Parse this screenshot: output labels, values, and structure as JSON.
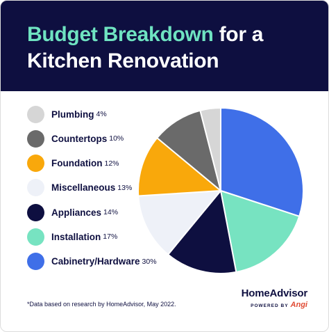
{
  "title": {
    "accent": "Budget Breakdown",
    "rest": "for a Kitchen Renovation"
  },
  "chart_data": {
    "type": "pie",
    "start": "12 o'clock, clockwise",
    "slices": [
      {
        "label": "Cabinetry/Hardware",
        "value": 30,
        "pct_label": "30%",
        "color": "#3f6fe8"
      },
      {
        "label": "Installation",
        "value": 17,
        "pct_label": "17%",
        "color": "#77e3c1"
      },
      {
        "label": "Appliances",
        "value": 14,
        "pct_label": "14%",
        "color": "#0e0f40"
      },
      {
        "label": "Miscellaneous",
        "value": 13,
        "pct_label": "13%",
        "color": "#eef1f8"
      },
      {
        "label": "Foundation",
        "value": 12,
        "pct_label": "12%",
        "color": "#f9a80b"
      },
      {
        "label": "Countertops",
        "value": 10,
        "pct_label": "10%",
        "color": "#6a6a6a"
      },
      {
        "label": "Plumbing",
        "value": 4,
        "pct_label": "4%",
        "color": "#d6d6d6"
      }
    ],
    "legend_order": [
      "Plumbing",
      "Countertops",
      "Foundation",
      "Miscellaneous",
      "Appliances",
      "Installation",
      "Cabinetry/Hardware"
    ],
    "legend_position": "left"
  },
  "footnote": "*Data based on research by HomeAdvisor, May 2022.",
  "brand": {
    "name": "HomeAdvisor",
    "powered_by": "POWERED BY",
    "partner": "Angi"
  },
  "colors": {
    "header_bg": "#0e0f40",
    "title_accent": "#6fe3c1",
    "text": "#0e0f40",
    "brand_partner": "#e04a33"
  }
}
